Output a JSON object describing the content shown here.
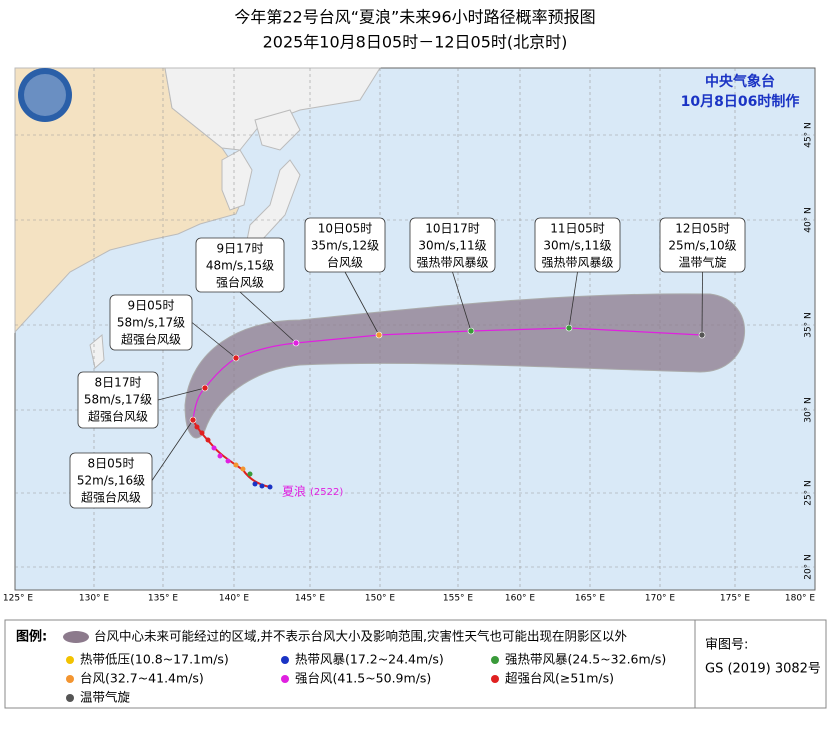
{
  "title": "今年第22号台风“夏浪”未来96小时路径概率预报图",
  "subtitle": "2025年10月8日05时－12日05时(北京时)",
  "agency": "中央气象台",
  "issued": "10月8日06时制作",
  "forecasts": [
    {
      "time": "8日05时",
      "wind": "52m/s,16级",
      "grade": "超强台风级"
    },
    {
      "time": "8日17时",
      "wind": "58m/s,17级",
      "grade": "超强台风级"
    },
    {
      "time": "9日05时",
      "wind": "58m/s,17级",
      "grade": "超强台风级"
    },
    {
      "time": "9日17时",
      "wind": "48m/s,15级",
      "grade": "强台风级"
    },
    {
      "time": "10日05时",
      "wind": "35m/s,12级",
      "grade": "台风级"
    },
    {
      "time": "10日17时",
      "wind": "30m/s,11级",
      "grade": "强热带风暴级"
    },
    {
      "time": "11日05时",
      "wind": "30m/s,11级",
      "grade": "强热带风暴级"
    },
    {
      "time": "12日05时",
      "wind": "25m/s,10级",
      "grade": "温带气旋"
    }
  ],
  "typhoon_name": "夏浪",
  "typhoon_code": "(2522)",
  "longitudes": [
    "125° E",
    "130° E",
    "135° E",
    "140° E",
    "145° E",
    "150° E",
    "155° E",
    "160° E",
    "165° E",
    "170° E",
    "175° E",
    "180° E"
  ],
  "latitudes": [
    "45° N",
    "40° N",
    "35° N",
    "30° N",
    "25° N",
    "20° N"
  ],
  "legend": {
    "title": "图例:",
    "cone": "台风中心未来可能经过的区域,并不表示台风大小及影响范围,灾害性天气也可能出现在阴影区以外",
    "items": [
      {
        "name": "热带低压(10.8~17.1m/s)",
        "color": "#f2c200"
      },
      {
        "name": "热带风暴(17.2~24.4m/s)",
        "color": "#1a33c4"
      },
      {
        "name": "强热带风暴(24.5~32.6m/s)",
        "color": "#3a9a3a"
      },
      {
        "name": "台风(32.7~41.4m/s)",
        "color": "#f39530"
      },
      {
        "name": "强台风(41.5~50.9m/s)",
        "color": "#e020e0"
      },
      {
        "name": "超强台风(≥51m/s)",
        "color": "#e02020"
      },
      {
        "name": "温带气旋",
        "color": "#555555"
      }
    ]
  },
  "review": {
    "label": "审图号:",
    "number": "GS (2019) 3082号"
  }
}
